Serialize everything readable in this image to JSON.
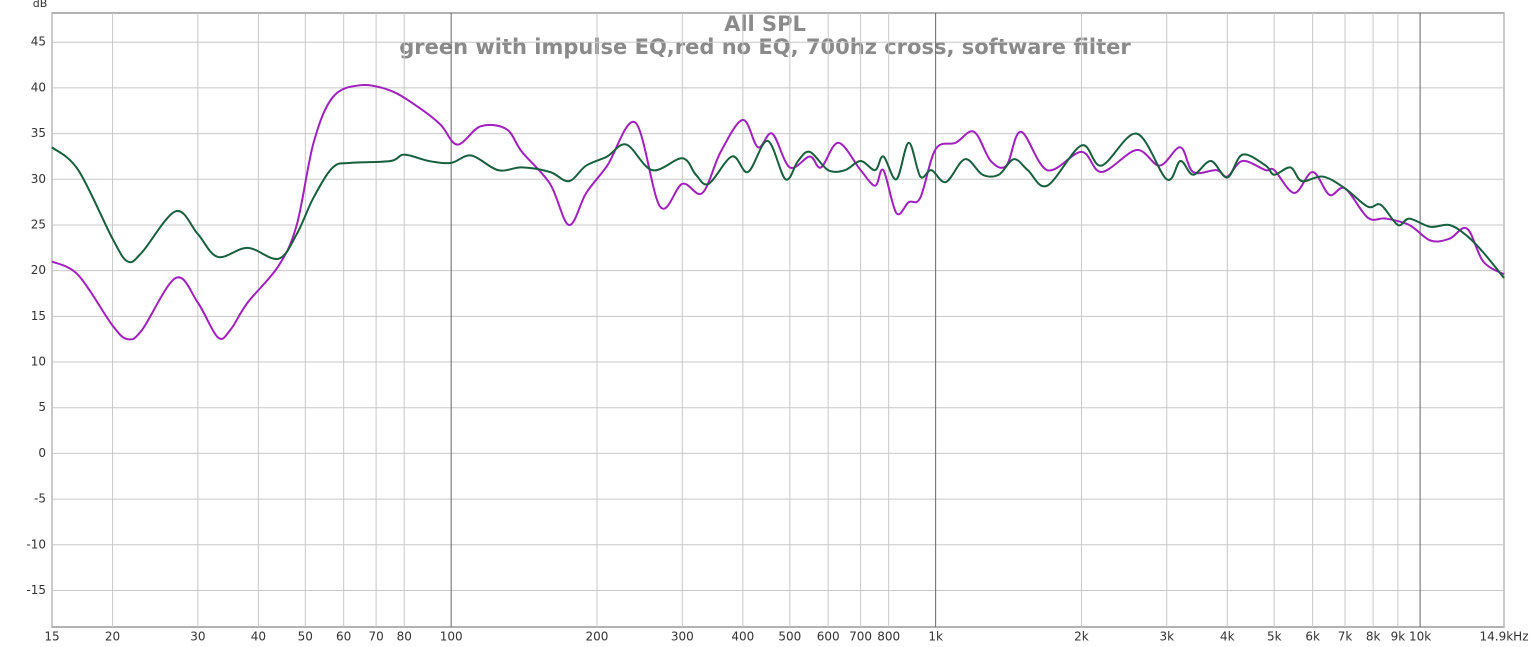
{
  "chart_data": {
    "type": "line",
    "title": "All SPL",
    "subtitle": "green with impulse EQ,red no EQ, 700hz cross, software filter",
    "ylabel": "dB",
    "xscale": "log",
    "grid": true,
    "xlim": [
      15,
      14900
    ],
    "ylim": [
      -19,
      48.2
    ],
    "yticks": [
      -15,
      -10,
      -5,
      0,
      5,
      10,
      15,
      20,
      25,
      30,
      35,
      40,
      45
    ],
    "xticks": [
      15,
      20,
      30,
      40,
      50,
      60,
      70,
      80,
      100,
      200,
      300,
      400,
      500,
      600,
      700,
      800,
      {
        "value": 1000,
        "label": "1k"
      },
      {
        "value": 2000,
        "label": "2k"
      },
      {
        "value": 3000,
        "label": "3k"
      },
      {
        "value": 4000,
        "label": "4k"
      },
      {
        "value": 5000,
        "label": "5k"
      },
      {
        "value": 6000,
        "label": "6k"
      },
      {
        "value": 7000,
        "label": "7k"
      },
      {
        "value": 8000,
        "label": "8k"
      },
      {
        "value": 9000,
        "label": "9k"
      },
      {
        "value": 10000,
        "label": "10k"
      },
      {
        "value": 14900,
        "label": "14.9kHz"
      }
    ],
    "series": [
      {
        "color": "#a21fbf",
        "x": [
          15,
          17,
          20,
          21.5,
          23,
          27,
          30,
          33,
          35,
          38,
          44,
          48,
          52,
          57,
          65,
          75,
          85,
          95,
          103,
          115,
          130,
          140,
          160,
          175,
          190,
          210,
          240,
          270,
          300,
          330,
          360,
          400,
          430,
          460,
          500,
          550,
          580,
          630,
          700,
          750,
          780,
          830,
          880,
          930,
          1000,
          1100,
          1200,
          1300,
          1400,
          1500,
          1700,
          2000,
          2200,
          2600,
          2900,
          3200,
          3400,
          3800,
          4000,
          4300,
          4800,
          5000,
          5500,
          6000,
          6500,
          7000,
          7800,
          8500,
          9500,
          10500,
          11500,
          12500,
          13500,
          14900
        ],
        "values": [
          21,
          19.5,
          14,
          12.5,
          13.5,
          19.2,
          16.5,
          12.7,
          13.5,
          16.5,
          20.5,
          25,
          34,
          39,
          40.3,
          39.7,
          38,
          36,
          33.8,
          35.8,
          35.5,
          33,
          29.5,
          25,
          28.5,
          31.5,
          36.2,
          27,
          29.5,
          28.5,
          33,
          36.5,
          33.5,
          35,
          31.3,
          32.5,
          31.3,
          34,
          31,
          29.3,
          31,
          26.3,
          27.5,
          28,
          33.3,
          34,
          35.2,
          32,
          31.5,
          35.2,
          31,
          33,
          30.8,
          33.2,
          31.5,
          33.5,
          30.8,
          31,
          30.3,
          32,
          31,
          31,
          28.5,
          30.8,
          28.3,
          29,
          25.8,
          25.7,
          25,
          23.3,
          23.5,
          24.6,
          21,
          19.6
        ]
      },
      {
        "color": "#175f3d",
        "x": [
          15,
          17,
          20,
          21.5,
          23,
          27,
          30,
          33,
          38,
          44,
          48,
          52,
          57,
          62,
          75,
          80,
          90,
          100,
          110,
          125,
          140,
          160,
          175,
          190,
          210,
          230,
          260,
          300,
          320,
          340,
          380,
          410,
          450,
          490,
          520,
          550,
          600,
          650,
          700,
          750,
          780,
          830,
          880,
          930,
          980,
          1050,
          1150,
          1250,
          1350,
          1450,
          1550,
          1700,
          2000,
          2200,
          2600,
          3000,
          3200,
          3400,
          3700,
          4000,
          4300,
          4800,
          5000,
          5400,
          5700,
          6300,
          7000,
          7800,
          8300,
          9000,
          9500,
          10500,
          11500,
          12500,
          13500,
          14900
        ],
        "values": [
          33.5,
          31,
          23.5,
          21,
          22,
          26.5,
          24,
          21.5,
          22.5,
          21.3,
          24,
          28,
          31.3,
          31.8,
          32,
          32.7,
          32,
          31.8,
          32.6,
          31,
          31.3,
          30.8,
          29.8,
          31.5,
          32.5,
          33.8,
          31,
          32.3,
          30.5,
          29.5,
          32.5,
          30.8,
          34.2,
          30,
          32,
          33,
          31,
          31,
          32,
          31,
          32.5,
          30,
          34,
          30.3,
          31,
          29.7,
          32.2,
          30.5,
          30.5,
          32.2,
          31,
          29.3,
          33.7,
          31.5,
          35,
          30,
          32,
          30.5,
          32,
          30.2,
          32.7,
          31.5,
          30.5,
          31.3,
          29.8,
          30.3,
          29,
          27,
          27.2,
          25,
          25.7,
          24.8,
          25,
          23.8,
          22,
          19.2
        ]
      }
    ]
  }
}
